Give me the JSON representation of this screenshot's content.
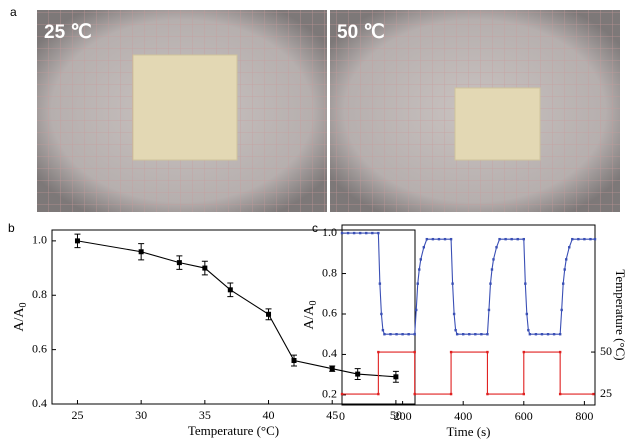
{
  "panel_labels": [
    "a",
    "b",
    "c"
  ],
  "photos": [
    {
      "label": "25 ℃"
    },
    {
      "label": "50 ℃"
    }
  ],
  "chart_data": [
    {
      "type": "line",
      "x": [
        25,
        30,
        33,
        35,
        37,
        40,
        42,
        45,
        47,
        50
      ],
      "series": [
        {
          "color": "#000000",
          "values": [
            1,
            0.96,
            0.92,
            0.9,
            0.82,
            0.73,
            0.56,
            0.53,
            0.51,
            0.5
          ],
          "errors": [
            0.025,
            0.03,
            0.025,
            0.025,
            0.025,
            0.02,
            0.02,
            0.01,
            0.02,
            0.02
          ]
        }
      ],
      "xlabel": "Temperature (°C)",
      "ylabel": {
        "main": "A/A",
        "sub": "0"
      },
      "xlim": [
        23,
        51.5
      ],
      "ylim": [
        0.4,
        1.04
      ],
      "xticks": [
        25,
        30,
        35,
        40,
        45,
        50
      ],
      "yticks": [
        0.4,
        0.6,
        0.8,
        {
          "value": 1,
          "label": "1.0"
        }
      ]
    },
    {
      "type": "line",
      "xlabel": "Time (s)",
      "ylabel": {
        "main": "A/A",
        "sub": "0"
      },
      "y2label": "Temperature (°C)",
      "series": [
        {
          "color": "#3a4fb5",
          "x": [
            0,
            20,
            40,
            60,
            80,
            100,
            120,
            125,
            130,
            135,
            140,
            160,
            180,
            200,
            220,
            240,
            245,
            250,
            255,
            260,
            270,
            280,
            300,
            320,
            340,
            360,
            365,
            370,
            375,
            380,
            400,
            420,
            440,
            460,
            480,
            485,
            490,
            495,
            500,
            510,
            520,
            540,
            560,
            580,
            600,
            605,
            610,
            615,
            620,
            640,
            660,
            680,
            700,
            720,
            725,
            730,
            735,
            740,
            750,
            760,
            780,
            800,
            820,
            835
          ],
          "values": [
            1,
            1,
            1,
            1,
            1,
            1,
            1,
            0.75,
            0.6,
            0.52,
            0.5,
            0.5,
            0.5,
            0.5,
            0.5,
            0.5,
            0.62,
            0.75,
            0.82,
            0.87,
            0.93,
            0.97,
            0.97,
            0.97,
            0.97,
            0.97,
            0.75,
            0.6,
            0.52,
            0.5,
            0.5,
            0.5,
            0.5,
            0.5,
            0.5,
            0.62,
            0.75,
            0.82,
            0.87,
            0.93,
            0.97,
            0.97,
            0.97,
            0.97,
            0.97,
            0.75,
            0.6,
            0.52,
            0.5,
            0.5,
            0.5,
            0.5,
            0.5,
            0.5,
            0.62,
            0.75,
            0.82,
            0.87,
            0.93,
            0.97,
            0.97,
            0.97,
            0.97,
            0.97
          ]
        },
        {
          "color": "#e02020",
          "axis": "y2",
          "x": [
            0,
            120,
            120,
            240,
            240,
            360,
            360,
            480,
            480,
            600,
            600,
            720,
            720,
            830
          ],
          "values": [
            25,
            25,
            50,
            50,
            25,
            25,
            50,
            50,
            25,
            25,
            50,
            50,
            25,
            25
          ]
        }
      ],
      "xlim": [
        0,
        835
      ],
      "ylim": [
        0.15,
        1.04
      ],
      "y2lim": [
        18.5,
        125.6
      ],
      "xticks": [
        0,
        200,
        400,
        600,
        800
      ],
      "yticks": [
        0.2,
        0.4,
        0.6,
        0.8,
        {
          "value": 1,
          "label": "1.0"
        }
      ],
      "y2ticks": [
        25,
        50
      ]
    }
  ]
}
